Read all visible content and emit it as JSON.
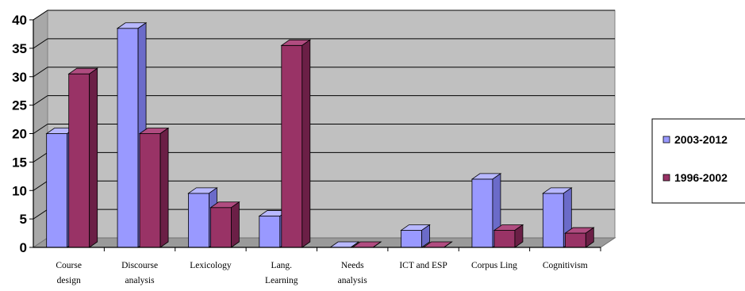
{
  "chart_data": {
    "type": "bar",
    "style": "3d-clustered-column",
    "categories": [
      [
        "Course",
        "design"
      ],
      [
        "Discourse",
        "analysis"
      ],
      [
        "Lexicology"
      ],
      [
        "Lang.",
        "Learning"
      ],
      [
        "Needs",
        "analysis"
      ],
      [
        "ICT and ESP"
      ],
      [
        "Corpus Ling"
      ],
      [
        "Cognitivism"
      ]
    ],
    "series": [
      {
        "name": "2003-2012",
        "values": [
          20,
          38.5,
          9.5,
          5.5,
          0,
          3,
          12,
          9.5
        ],
        "color": "#9999ff",
        "side_color": "#6b6bc9",
        "top_color": "#b8b8ff"
      },
      {
        "name": "1996-2002",
        "values": [
          30.5,
          20,
          7,
          35.5,
          0,
          0,
          3,
          2.5
        ],
        "color": "#993366",
        "side_color": "#6b1f46",
        "top_color": "#b04c80"
      }
    ],
    "ylim": [
      0,
      40
    ],
    "yticks": [
      0,
      5,
      10,
      15,
      20,
      25,
      30,
      35,
      40
    ],
    "grid": true,
    "plot_background": "#c0c0c0",
    "legend_position": "right"
  }
}
